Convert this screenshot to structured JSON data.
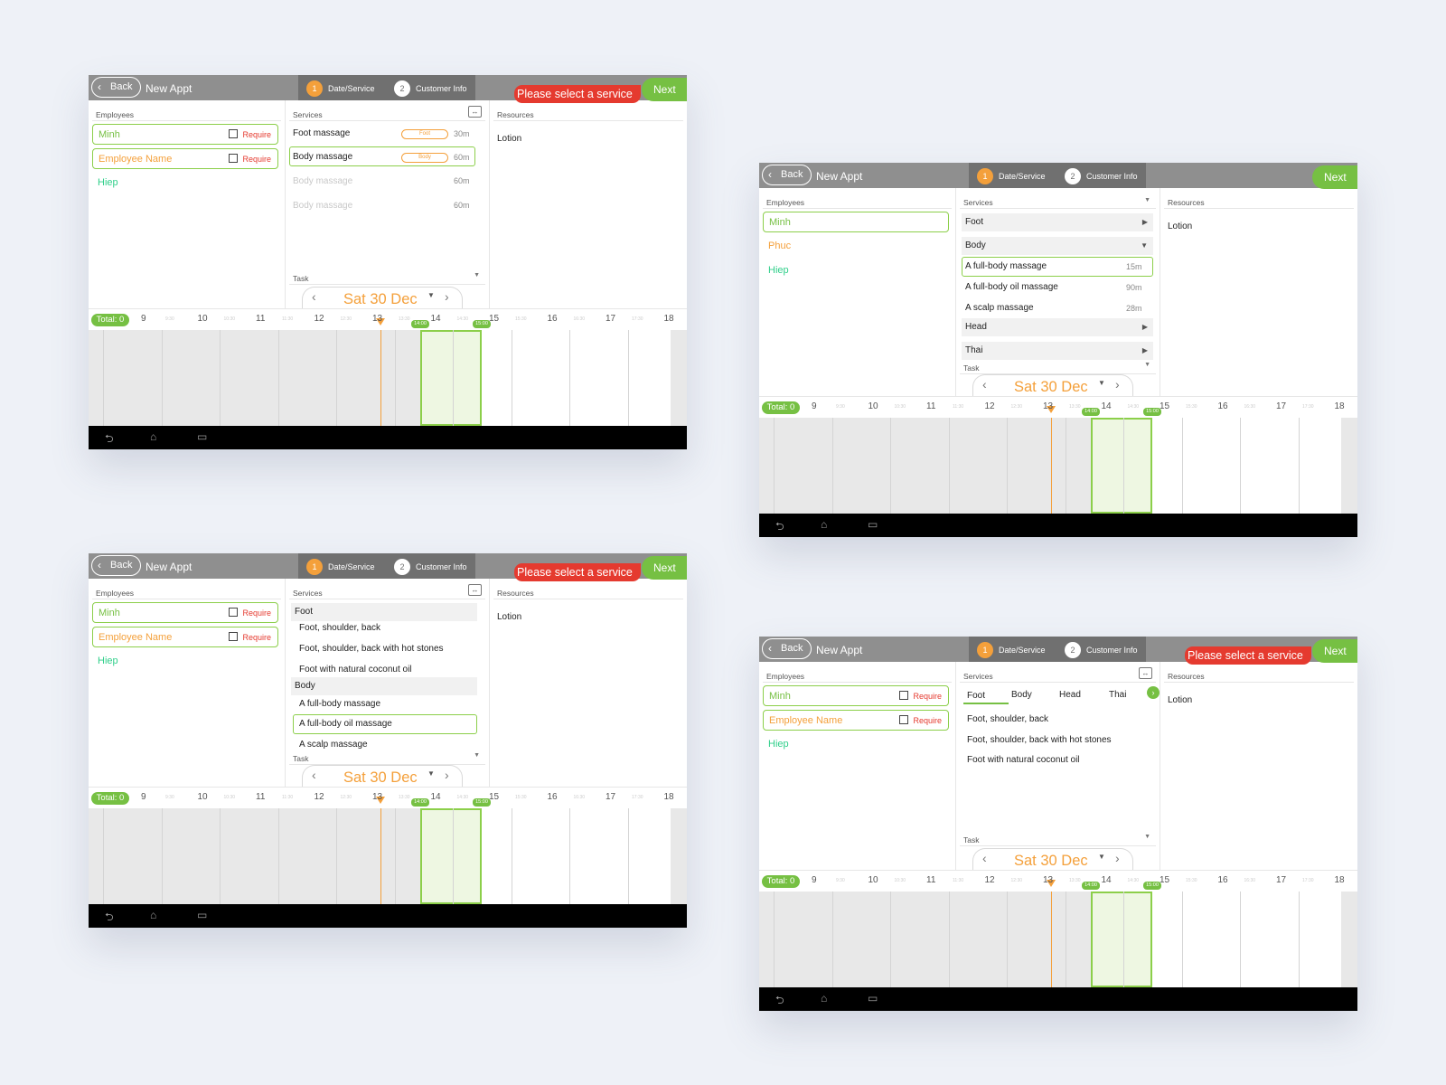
{
  "common": {
    "back": "Back",
    "title": "New Appt",
    "step1_num": "1",
    "step1": "Date/Service",
    "step2_num": "2",
    "step2": "Customer Info",
    "warning": "Please select a service",
    "next": "Next",
    "employees_label": "Employees",
    "services_label": "Services",
    "resources_label": "Resources",
    "resource_item": "Lotion",
    "require": "Require",
    "task_label": "Task",
    "date": "Sat 30 Dec",
    "total": "Total: 0",
    "hours": [
      "9",
      "10",
      "11",
      "12",
      "13",
      "14",
      "15",
      "16",
      "17",
      "18"
    ],
    "halves": [
      "9:30",
      "10:30",
      "11:30",
      "12:30",
      "13:30",
      "14:30",
      "15:30",
      "16:30",
      "17:30"
    ],
    "slot_start": "14:00",
    "slot_end": "15:00"
  },
  "screen1": {
    "employees": [
      "Minh",
      "Employee Name",
      "Hiep"
    ],
    "services": [
      {
        "name": "Foot massage",
        "tag": "Foot",
        "duration": "30m"
      },
      {
        "name": "Body massage",
        "tag": "Body",
        "duration": "60m"
      },
      {
        "name": "Body massage",
        "duration": "60m"
      },
      {
        "name": "Body massage",
        "duration": "60m"
      }
    ]
  },
  "screen2": {
    "employees": [
      "Minh",
      "Phuc",
      "Hiep"
    ],
    "categories": [
      "Foot",
      "Body",
      "Head",
      "Thai"
    ],
    "body_services": [
      {
        "name": "A full-body massage",
        "duration": "15m"
      },
      {
        "name": "A full-body oil massage",
        "duration": "90m"
      },
      {
        "name": "A scalp massage",
        "duration": "28m"
      }
    ]
  },
  "screen3": {
    "employees": [
      "Minh",
      "Employee Name",
      "Hiep"
    ],
    "foot_label": "Foot",
    "foot_services": [
      "Foot, shoulder, back",
      "Foot, shoulder, back with hot stones",
      "Foot with natural coconut oil"
    ],
    "body_label": "Body",
    "body_services": [
      "A full-body massage",
      "A full-body oil massage",
      "A scalp massage"
    ]
  },
  "screen4": {
    "employees": [
      "Minh",
      "Employee Name",
      "Hiep"
    ],
    "tabs": [
      "Foot",
      "Body",
      "Head",
      "Thai"
    ],
    "services": [
      "Foot, shoulder, back",
      "Foot, shoulder, back with hot stones",
      "Foot with natural coconut oil"
    ]
  },
  "icons": {
    "back": "chevron-left-icon",
    "expand": "expand-horizontal-icon",
    "nav_back": "android-back-icon",
    "nav_home": "android-home-icon",
    "nav_recent": "android-recent-icon"
  },
  "colors": {
    "accent_green": "#76c043",
    "accent_orange": "#f4a03b",
    "warning_red": "#e53a2f",
    "employee_teal": "#2fcf8a"
  }
}
